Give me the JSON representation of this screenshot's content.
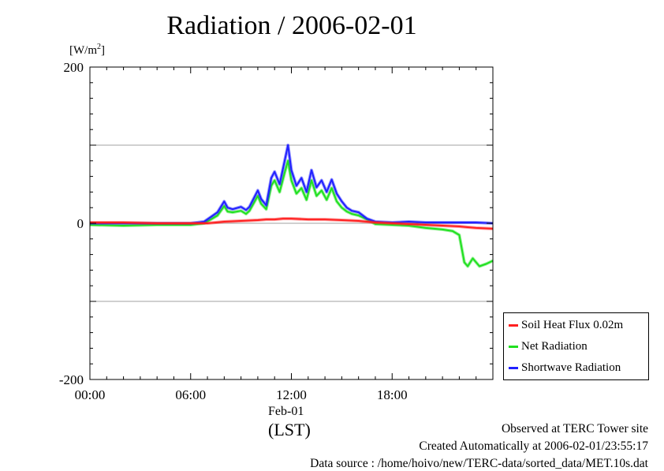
{
  "header": {
    "title": "Radiation / 2006-02-01"
  },
  "chart_data": {
    "type": "line",
    "title": "Radiation / 2006-02-01",
    "ylabel_prefix": "[W/m",
    "ylabel_sup": "2",
    "ylabel_suffix": "]",
    "xlabel": "(LST)",
    "date_label": "Feb-01",
    "xlim": [
      0,
      24
    ],
    "ylim": [
      -200,
      200
    ],
    "x_ticks": [
      {
        "value": 0,
        "label": "00:00"
      },
      {
        "value": 6,
        "label": "06:00"
      },
      {
        "value": 12,
        "label": "12:00"
      },
      {
        "value": 18,
        "label": "18:00"
      }
    ],
    "y_ticks": [
      {
        "value": 200,
        "label": "200"
      },
      {
        "value": 0,
        "label": "0"
      },
      {
        "value": -200,
        "label": "-200"
      }
    ],
    "gridlines_y": [
      100,
      0,
      -100
    ],
    "legend_position": "lower-right-outside",
    "series": [
      {
        "name": "Soil Heat Flux 0.02m",
        "color": "#ff2020",
        "x": [
          0,
          2,
          4,
          6,
          7,
          7.5,
          8,
          9,
          10,
          10.5,
          11,
          11.5,
          12,
          13,
          14,
          15,
          16,
          17,
          18,
          19,
          20,
          21,
          22,
          22.5,
          23,
          24
        ],
        "y": [
          1,
          1,
          0,
          0,
          0,
          1,
          2,
          3,
          4,
          5,
          5,
          6,
          6,
          5,
          5,
          4,
          3,
          1,
          0,
          -1,
          -2,
          -3,
          -4,
          -5,
          -6,
          -7
        ]
      },
      {
        "name": "Net Radiation",
        "color": "#20e020",
        "x": [
          0,
          2,
          4,
          6,
          6.8,
          7.2,
          7.6,
          8,
          8.2,
          8.5,
          9,
          9.3,
          9.5,
          10,
          10.2,
          10.5,
          10.8,
          11,
          11.3,
          11.6,
          11.8,
          12,
          12.3,
          12.6,
          12.9,
          13.2,
          13.5,
          13.8,
          14.1,
          14.4,
          14.7,
          15,
          15.3,
          15.6,
          16,
          16.5,
          17,
          18,
          19,
          20,
          21,
          21.6,
          22,
          22.3,
          22.5,
          22.8,
          23.2,
          23.6,
          24
        ],
        "y": [
          -2,
          -3,
          -2,
          -2,
          0,
          5,
          10,
          22,
          15,
          14,
          16,
          12,
          16,
          35,
          25,
          18,
          48,
          55,
          40,
          65,
          80,
          55,
          38,
          45,
          30,
          55,
          35,
          42,
          30,
          45,
          28,
          20,
          15,
          12,
          10,
          5,
          -1,
          -2,
          -3,
          -6,
          -8,
          -10,
          -15,
          -50,
          -55,
          -45,
          -55,
          -52,
          -48
        ]
      },
      {
        "name": "Shortwave Radiation",
        "color": "#2020ff",
        "x": [
          0,
          2,
          4,
          6,
          6.8,
          7.2,
          7.6,
          8,
          8.2,
          8.5,
          9,
          9.3,
          9.5,
          10,
          10.2,
          10.5,
          10.8,
          11,
          11.3,
          11.6,
          11.8,
          12,
          12.3,
          12.6,
          12.9,
          13.2,
          13.5,
          13.8,
          14.1,
          14.4,
          14.7,
          15,
          15.3,
          15.6,
          16,
          16.5,
          17,
          18,
          19,
          20,
          21,
          22,
          23,
          24
        ],
        "y": [
          0,
          0,
          0,
          0,
          2,
          8,
          14,
          28,
          20,
          18,
          21,
          17,
          21,
          42,
          31,
          23,
          58,
          66,
          50,
          80,
          100,
          68,
          48,
          58,
          40,
          68,
          46,
          55,
          40,
          56,
          38,
          28,
          20,
          16,
          14,
          6,
          2,
          1,
          2,
          1,
          1,
          1,
          1,
          0
        ]
      }
    ]
  },
  "footer": {
    "line1": "Observed at TERC Tower site",
    "line2": "Created Automatically at 2006-02-01/23:55:17",
    "line3": "Data source : /home/hoivo/new/TERC-data/sorted_data/MET.10s.dat"
  }
}
